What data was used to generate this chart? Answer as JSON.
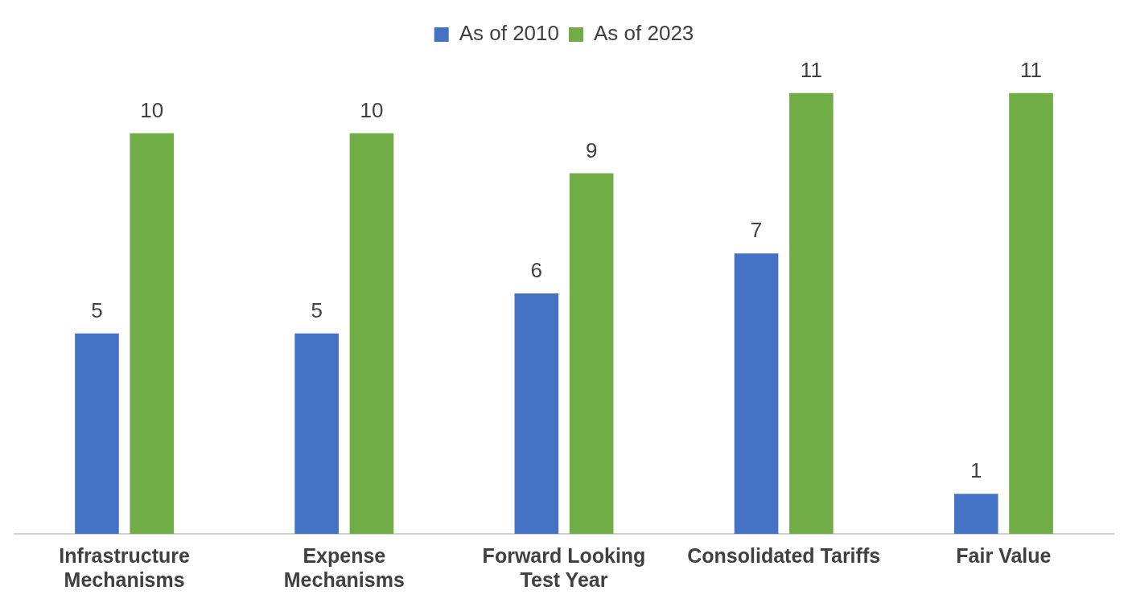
{
  "chart_data": {
    "type": "bar",
    "categories": [
      "Infrastructure Mechanisms",
      "Expense Mechanisms",
      "Forward Looking Test Year",
      "Consolidated Tariffs",
      "Fair Value"
    ],
    "series": [
      {
        "name": "As of 2010",
        "color": "#4472c4",
        "values": [
          5,
          5,
          6,
          7,
          1
        ]
      },
      {
        "name": "As of 2023",
        "color": "#70ad47",
        "values": [
          10,
          10,
          9,
          11,
          11
        ]
      }
    ],
    "data_labels": true,
    "legend": "top",
    "grid": false
  }
}
